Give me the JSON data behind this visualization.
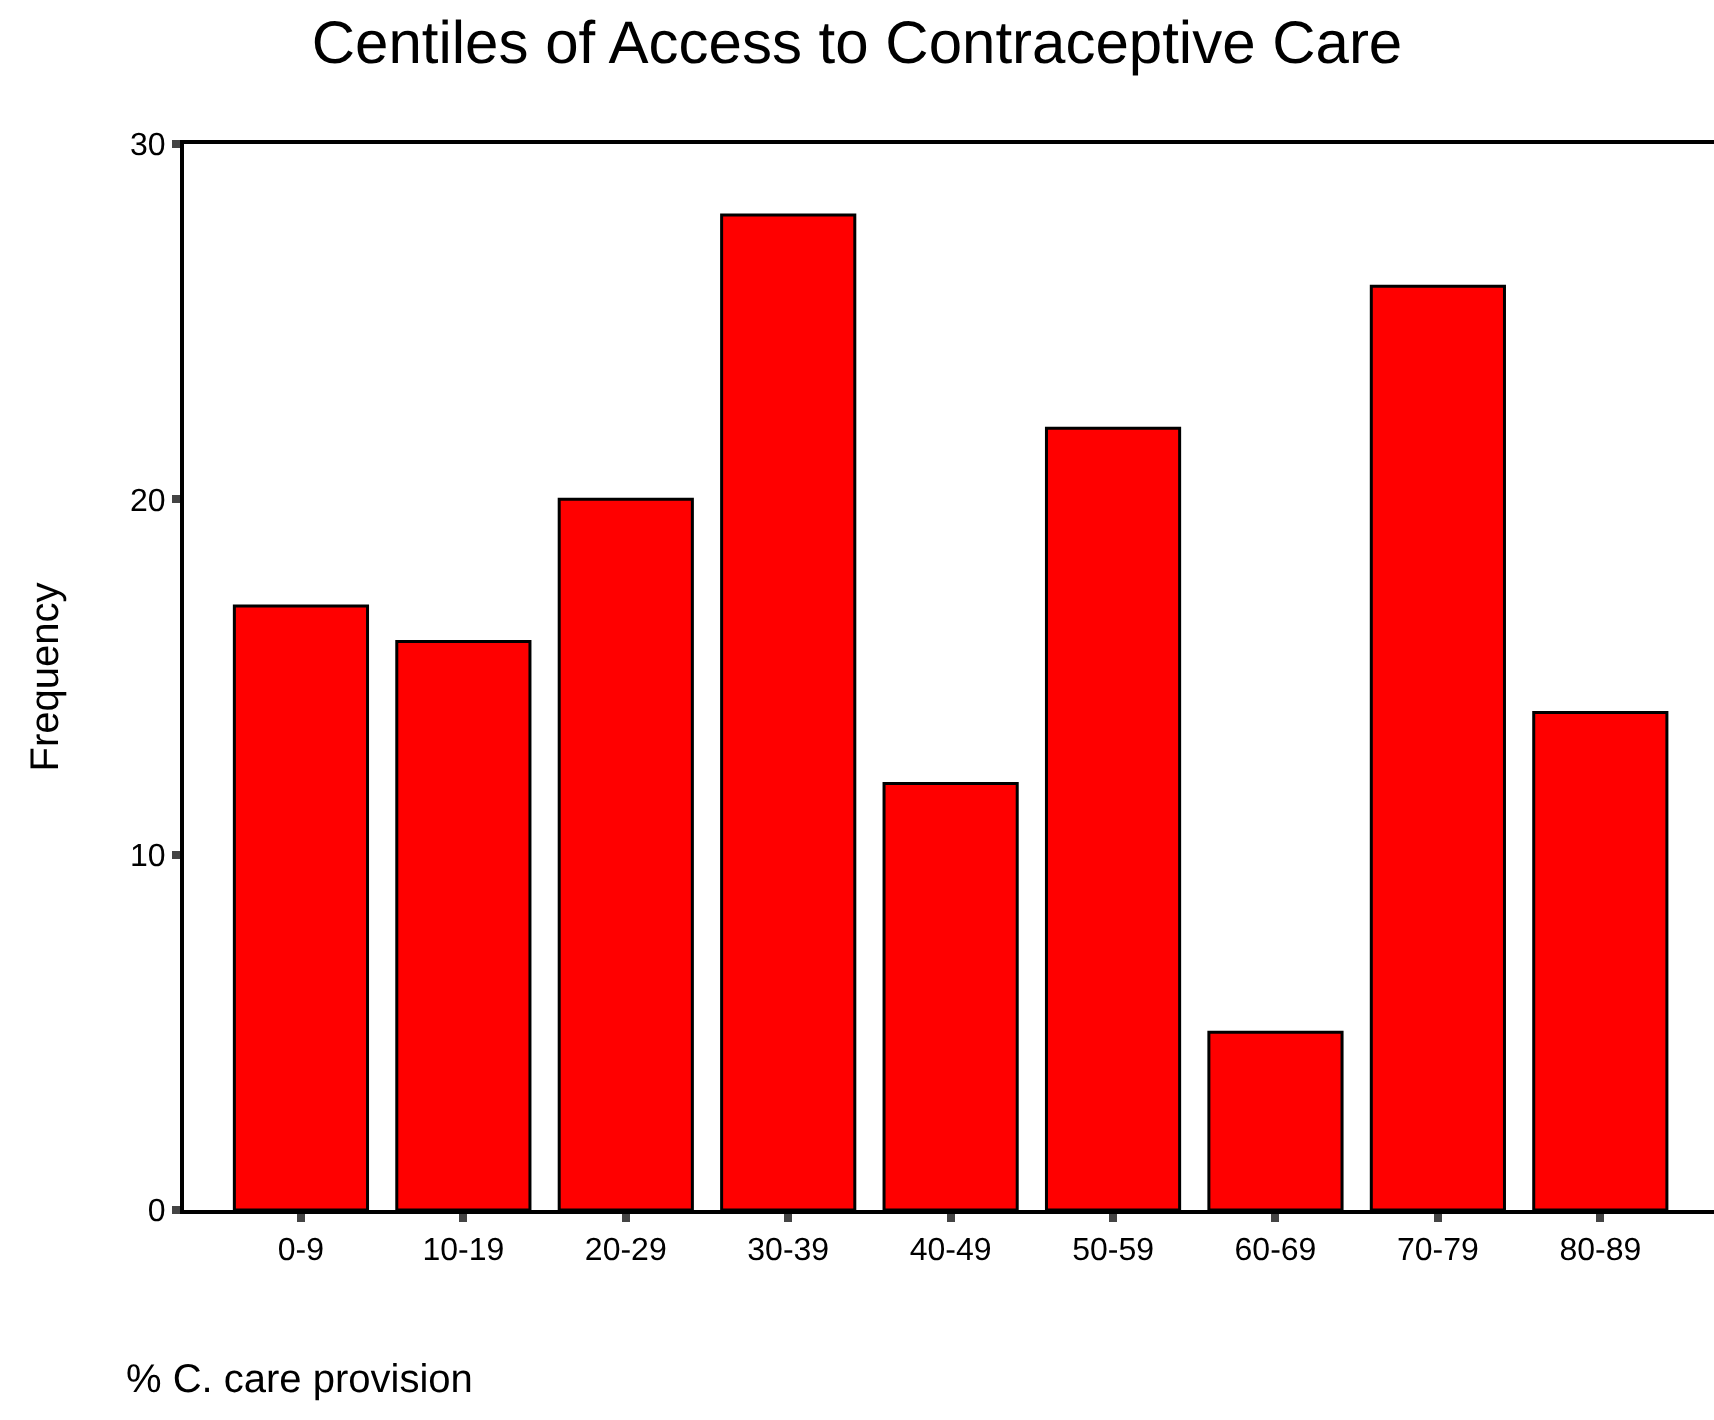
{
  "chart_data": {
    "type": "bar",
    "title": "Centiles of Access to Contraceptive Care",
    "xlabel": "% C. care provision",
    "ylabel": "Frequency",
    "categories": [
      "0-9",
      "10-19",
      "20-29",
      "30-39",
      "40-49",
      "50-59",
      "60-69",
      "70-79",
      "80-89"
    ],
    "values": [
      17,
      16,
      20,
      28,
      12,
      22,
      5,
      26,
      14
    ],
    "color": "#ff0000",
    "ylim": [
      0,
      30
    ],
    "yticks": [
      0,
      10,
      20,
      30
    ]
  }
}
